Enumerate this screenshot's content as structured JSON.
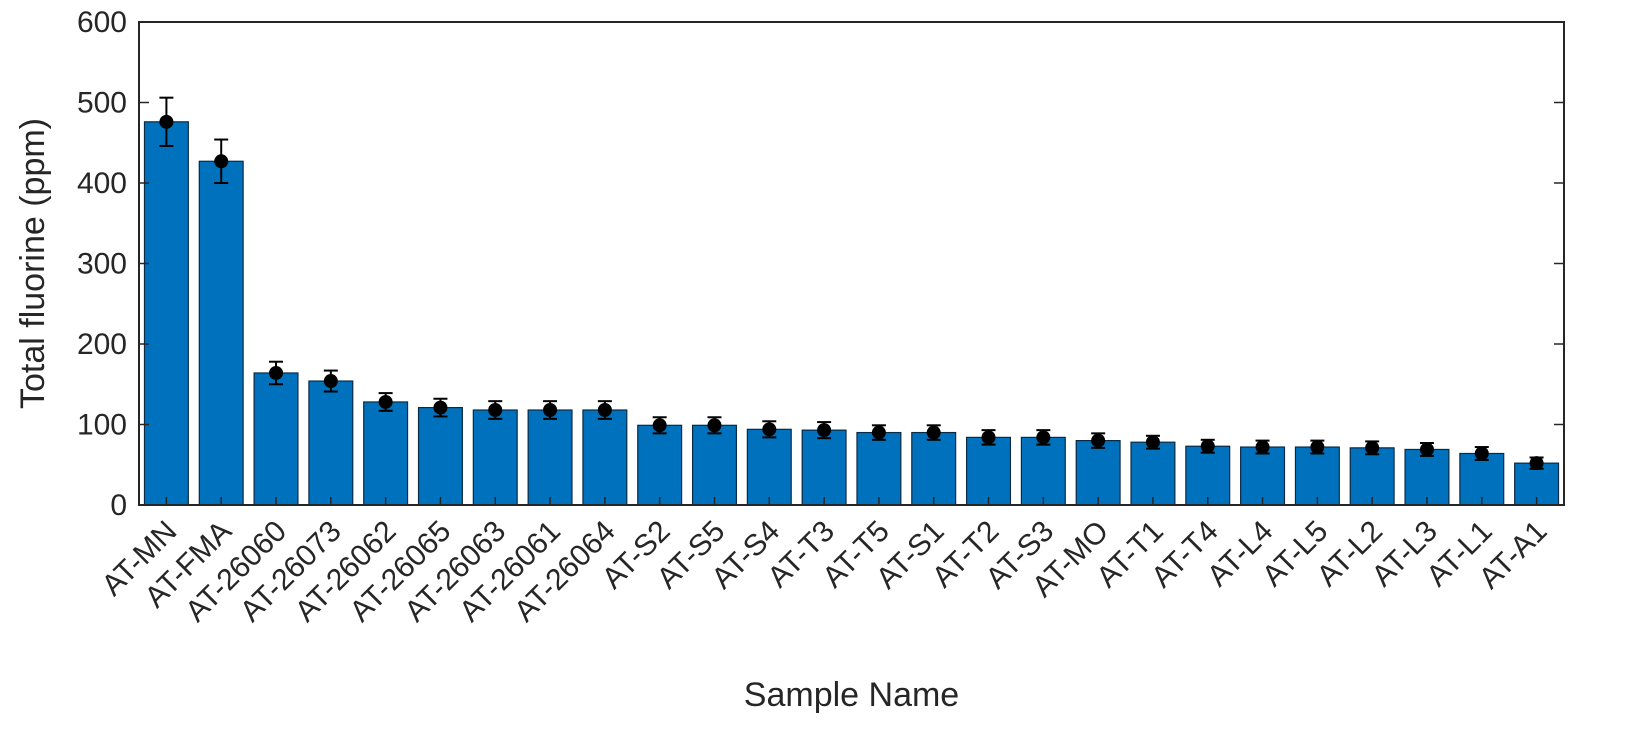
{
  "chart_data": {
    "type": "bar",
    "title": "",
    "xlabel": "Sample Name",
    "ylabel": "Total fluorine (ppm)",
    "ylim": [
      0,
      600
    ],
    "yticks": [
      0,
      100,
      200,
      300,
      400,
      500,
      600
    ],
    "grid": false,
    "categories": [
      "AT-MN",
      "AT-FMA",
      "AT-26060",
      "AT-26073",
      "AT-26062",
      "AT-26065",
      "AT-26063",
      "AT-26061",
      "AT-26064",
      "AT-S2",
      "AT-S5",
      "AT-S4",
      "AT-T3",
      "AT-T5",
      "AT-S1",
      "AT-T2",
      "AT-S3",
      "AT-MO",
      "AT-T1",
      "AT-T4",
      "AT-L4",
      "AT-L5",
      "AT-L2",
      "AT-L3",
      "AT-L1",
      "AT-A1"
    ],
    "values": [
      476,
      427,
      164,
      154,
      128,
      121,
      118,
      118,
      118,
      99,
      99,
      94,
      93,
      90,
      90,
      84,
      84,
      80,
      78,
      73,
      72,
      72,
      71,
      69,
      64,
      52
    ],
    "error": [
      30,
      27,
      14,
      13,
      11,
      11,
      11,
      11,
      11,
      10,
      10,
      10,
      10,
      9,
      9,
      9,
      9,
      9,
      8,
      8,
      8,
      8,
      8,
      8,
      8,
      7
    ],
    "colors": {
      "bar": "#0072BD",
      "bar_edge": "#0a2a45",
      "marker": "#000000",
      "axis": "#262626"
    }
  }
}
